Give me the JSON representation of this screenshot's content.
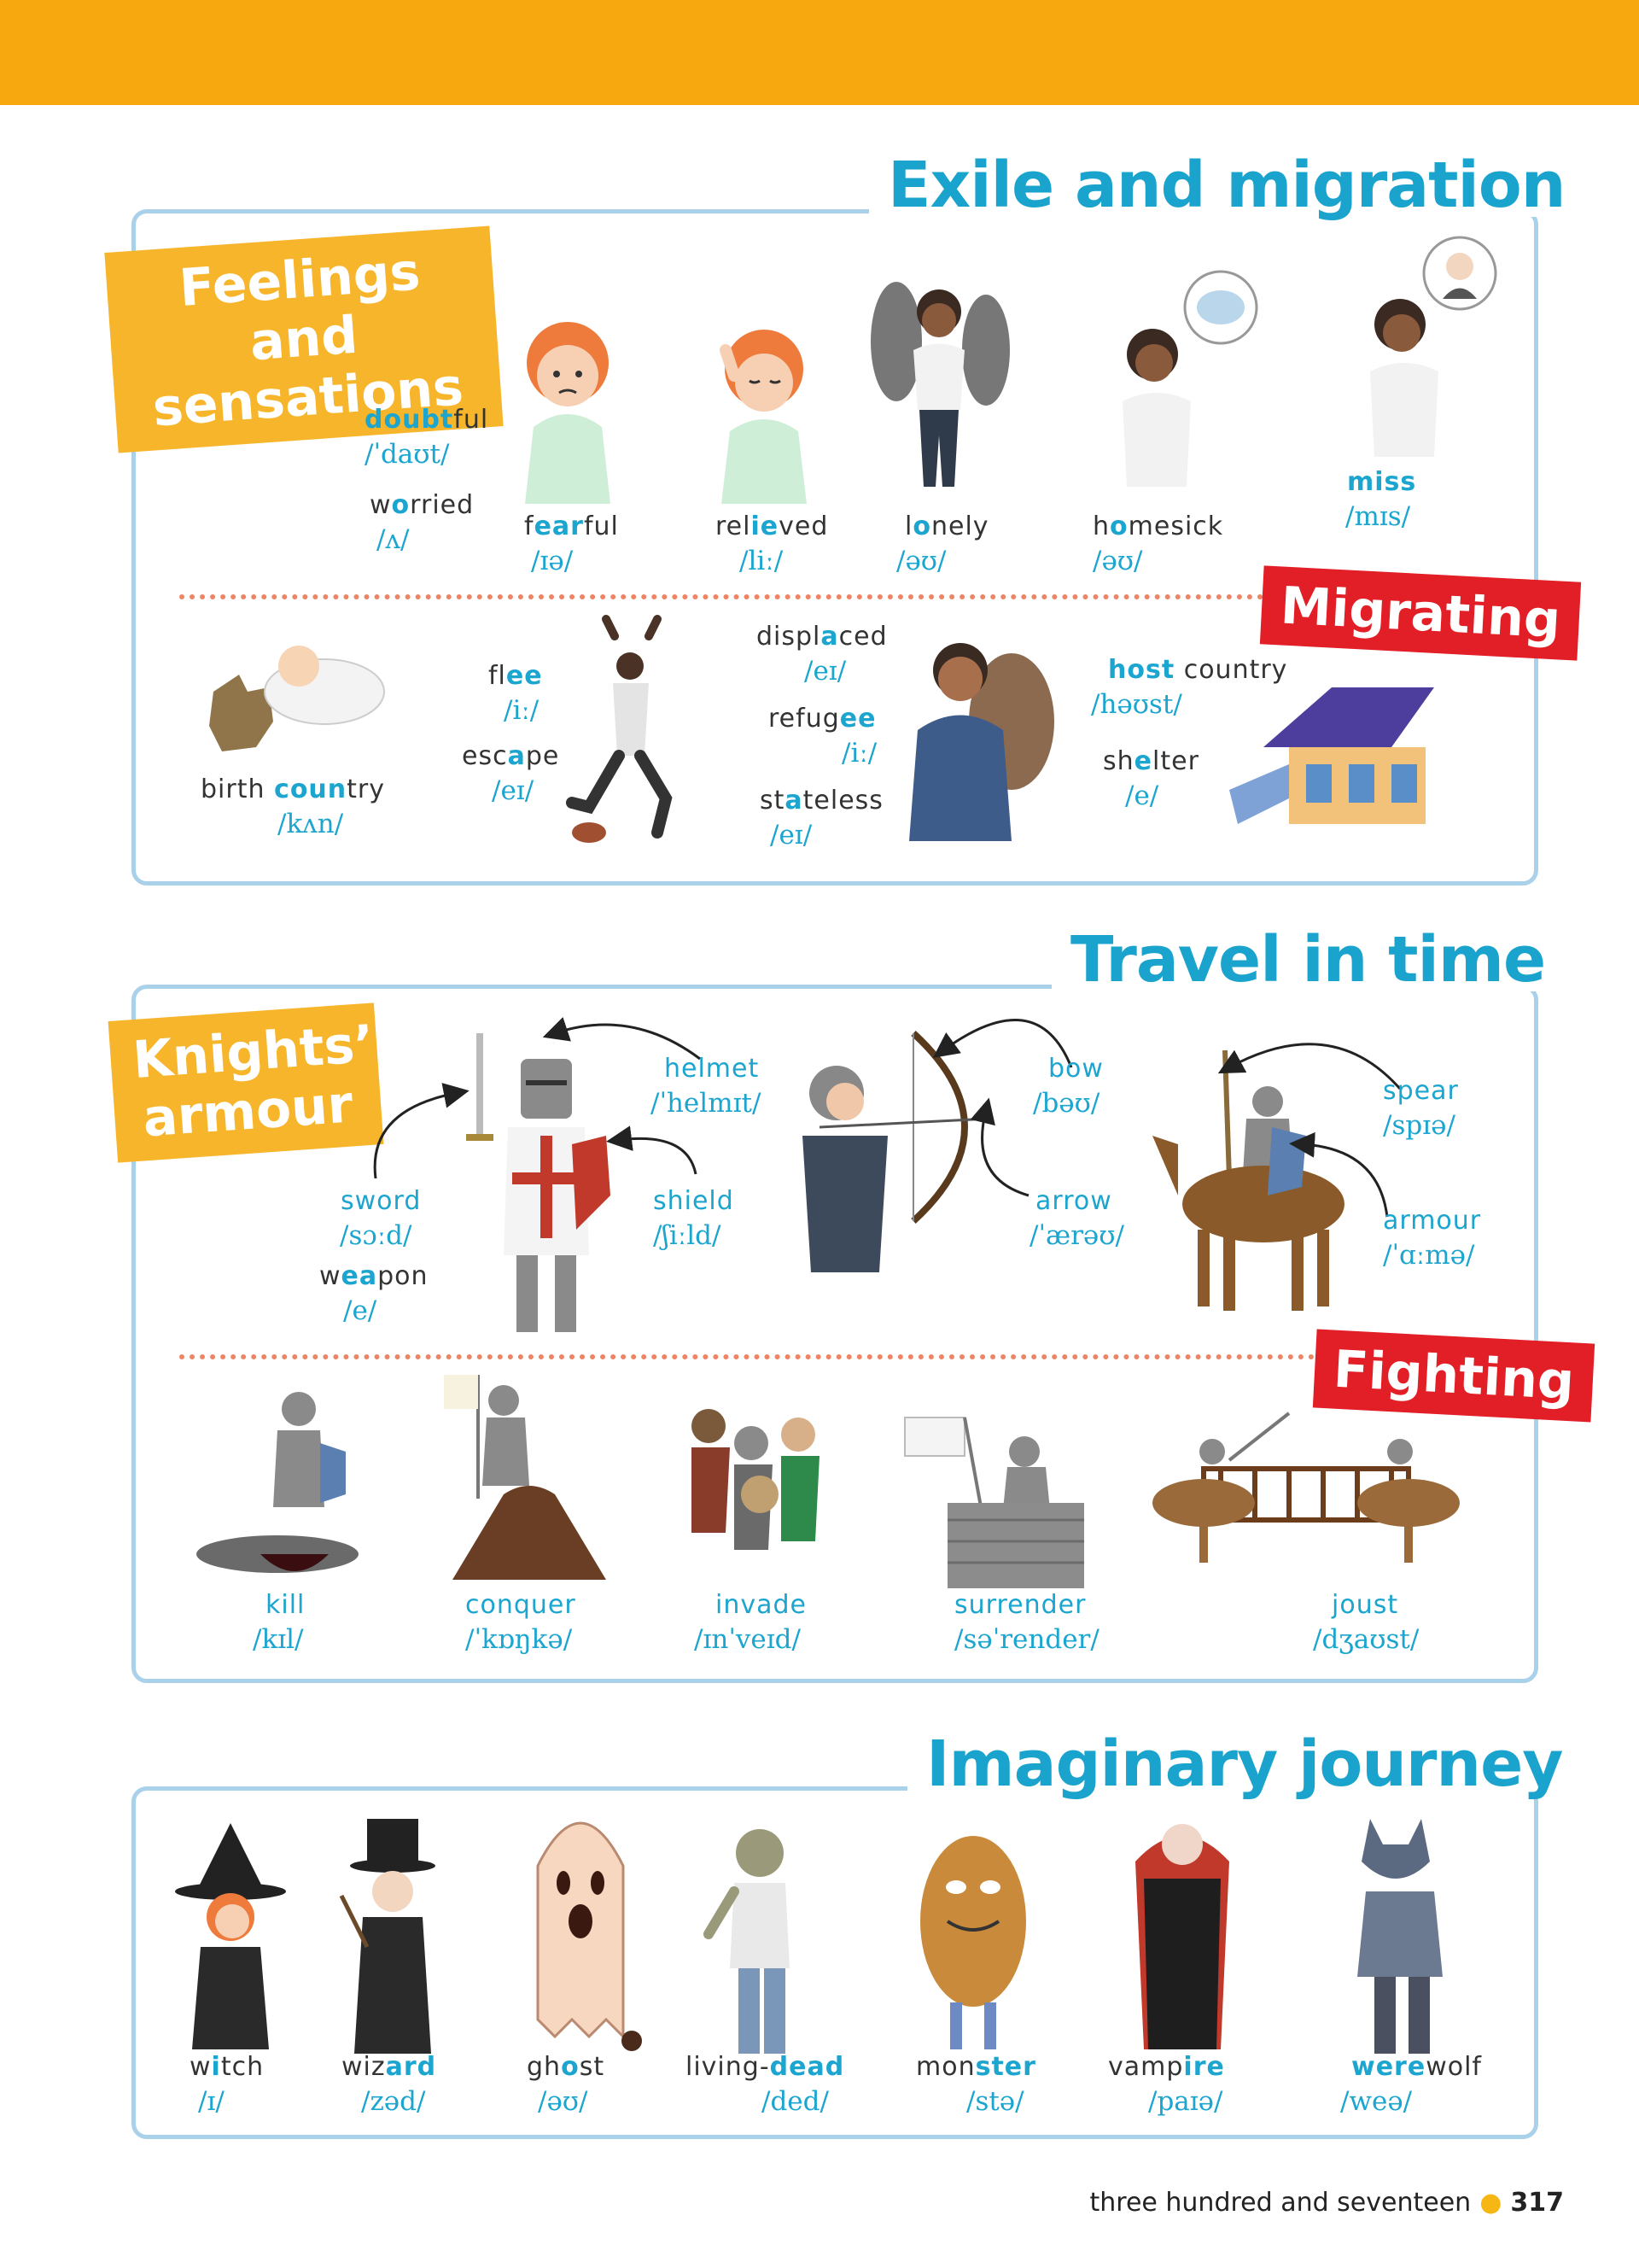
{
  "sections": {
    "exile": {
      "title": "Exile and migration",
      "feelings_label": "Feelings and sensations",
      "migrating_label": "Migrating",
      "feelings": [
        {
          "pre": "",
          "hl": "doubt",
          "post": "ful",
          "ipa": "/ˈdaʊt/"
        },
        {
          "pre": "w",
          "hl": "o",
          "post": "rried",
          "ipa": "/ʌ/"
        },
        {
          "pre": "f",
          "hl": "ear",
          "post": "ful",
          "ipa": "/ɪə/"
        },
        {
          "pre": "rel",
          "hl": "ie",
          "post": "ved",
          "ipa": "/liː/"
        },
        {
          "pre": "l",
          "hl": "o",
          "post": "nely",
          "ipa": "/əʊ/"
        },
        {
          "pre": "h",
          "hl": "o",
          "post": "mesick",
          "ipa": "/əʊ/"
        },
        {
          "pre": "",
          "hl": "miss",
          "post": "",
          "ipa": "/mɪs/"
        }
      ],
      "migrating": [
        {
          "pre": "birth ",
          "hl": "coun",
          "post": "try",
          "ipa": "/kʌn/"
        },
        {
          "pre": "fl",
          "hl": "ee",
          "post": "",
          "ipa": "/iː/"
        },
        {
          "pre": "esc",
          "hl": "a",
          "post": "pe",
          "ipa": "/eɪ/"
        },
        {
          "pre": "displ",
          "hl": "a",
          "post": "ced",
          "ipa": "/eɪ/"
        },
        {
          "pre": "refug",
          "hl": "ee",
          "post": "",
          "ipa": "/iː/"
        },
        {
          "pre": "st",
          "hl": "a",
          "post": "teless",
          "ipa": "/eɪ/"
        },
        {
          "pre": "",
          "hl": "host",
          "post": " country",
          "ipa": "/həʊst/"
        },
        {
          "pre": "sh",
          "hl": "e",
          "post": "lter",
          "ipa": "/e/"
        }
      ]
    },
    "travel": {
      "title": "Travel in time",
      "knights_label": "Knights’ armour",
      "fighting_label": "Fighting",
      "armour": [
        {
          "word": "helmet",
          "ipa": "/ˈhelmɪt/"
        },
        {
          "word": "sword",
          "ipa": "/sɔːd/"
        },
        {
          "word": "shield",
          "ipa": "/ʃiːld/"
        },
        {
          "pre": "w",
          "hl": "ea",
          "post": "pon",
          "ipa": "/e/"
        },
        {
          "word": "bow",
          "ipa": "/bəʊ/"
        },
        {
          "word": "arrow",
          "ipa": "/ˈærəʊ/"
        },
        {
          "word": "spear",
          "ipa": "/spɪə/"
        },
        {
          "word": "armour",
          "ipa": "/ˈɑːmə/"
        }
      ],
      "fighting": [
        {
          "word": "kill",
          "ipa": "/kɪl/"
        },
        {
          "word": "conquer",
          "ipa": "/ˈkɒŋkə/"
        },
        {
          "word": "invade",
          "ipa": "/ɪnˈveɪd/"
        },
        {
          "word": "surrender",
          "ipa": "/səˈrender/"
        },
        {
          "word": "joust",
          "ipa": "/dʒaʊst/"
        }
      ]
    },
    "imaginary": {
      "title": "Imaginary journey",
      "items": [
        {
          "pre": "w",
          "hl": "i",
          "post": "tch",
          "ipa": "/ɪ/"
        },
        {
          "pre": "wiz",
          "hl": "ard",
          "post": "",
          "ipa": "/zəd/"
        },
        {
          "pre": "gh",
          "hl": "o",
          "post": "st",
          "ipa": "/əʊ/"
        },
        {
          "pre": "living-",
          "hl": "dead",
          "post": "",
          "ipa": "/ded/"
        },
        {
          "pre": "mon",
          "hl": "ster",
          "post": "",
          "ipa": "/stə/"
        },
        {
          "pre": "vamp",
          "hl": "ire",
          "post": "",
          "ipa": "/paɪə/"
        },
        {
          "pre": "",
          "hl": "were",
          "post": "wolf",
          "ipa": "/weə/"
        }
      ]
    }
  },
  "footer": {
    "text": "three hundred and seventeen",
    "page": "317"
  },
  "colors": {
    "topbar": "#f6a80e",
    "title_blue": "#1aa3cc",
    "yellow_label": "#f7b52b",
    "red_label": "#e21f26",
    "box_border": "#a9d1ea"
  }
}
